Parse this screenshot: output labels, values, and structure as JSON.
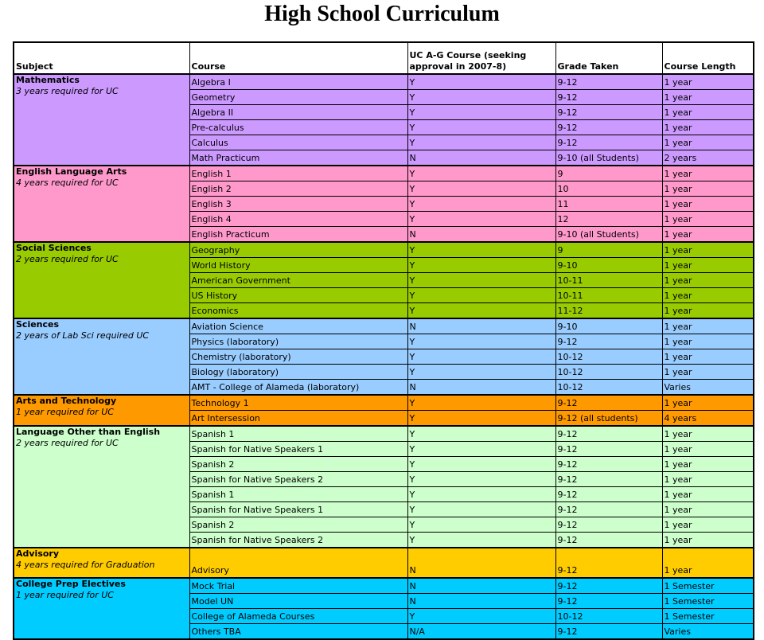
{
  "title": "High School Curriculum",
  "table": {
    "headers": [
      "Subject",
      "Course",
      "UC A-G Course (seeking approval in 2007-8)",
      "Grade Taken",
      "Course Length"
    ],
    "sections": [
      {
        "subject": "Mathematics",
        "note": "3 years required for UC",
        "color": "#CC99FF",
        "courses": [
          {
            "course": "Algebra I",
            "uc_ag": "Y",
            "grade": "9-12",
            "length": "1 year"
          },
          {
            "course": "Geometry",
            "uc_ag": "Y",
            "grade": "9-12",
            "length": "1 year"
          },
          {
            "course": "Algebra II",
            "uc_ag": "Y",
            "grade": "9-12",
            "length": "1 year"
          },
          {
            "course": "Pre-calculus",
            "uc_ag": "Y",
            "grade": "9-12",
            "length": "1 year"
          },
          {
            "course": "Calculus",
            "uc_ag": "Y",
            "grade": "9-12",
            "length": "1 year"
          },
          {
            "course": "Math Practicum",
            "uc_ag": "N",
            "grade": "9-10 (all Students)",
            "length": "2 years"
          }
        ]
      },
      {
        "subject": "English Language Arts",
        "note": "4 years required for UC",
        "color": "#FF99CC",
        "courses": [
          {
            "course": "English 1",
            "uc_ag": "Y",
            "grade": "9",
            "length": "1 year"
          },
          {
            "course": "English 2",
            "uc_ag": "Y",
            "grade": "10",
            "length": "1 year"
          },
          {
            "course": "English 3",
            "uc_ag": "Y",
            "grade": "11",
            "length": "1 year"
          },
          {
            "course": "English 4",
            "uc_ag": "Y",
            "grade": "12",
            "length": "1 year"
          },
          {
            "course": "English Practicum",
            "uc_ag": "N",
            "grade": "9-10 (all Students)",
            "length": "1 year"
          }
        ]
      },
      {
        "subject": "Social Sciences",
        "note": "2 years required for UC",
        "color": "#99CC00",
        "courses": [
          {
            "course": "Geography",
            "uc_ag": "Y",
            "grade": "9",
            "length": "1 year"
          },
          {
            "course": "World History",
            "uc_ag": "Y",
            "grade": "9-10",
            "length": "1 year"
          },
          {
            "course": "American Government",
            "uc_ag": "Y",
            "grade": "10-11",
            "length": "1 year"
          },
          {
            "course": "US History",
            "uc_ag": "Y",
            "grade": "10-11",
            "length": "1 year"
          },
          {
            "course": "Economics",
            "uc_ag": "Y",
            "grade": "11-12",
            "length": "1 year"
          }
        ]
      },
      {
        "subject": "Sciences",
        "note": "2 years of Lab Sci required UC",
        "color": "#99CCFF",
        "courses": [
          {
            "course": "Aviation Science",
            "uc_ag": "N",
            "grade": "9-10",
            "length": "1 year"
          },
          {
            "course": "Physics (laboratory)",
            "uc_ag": "Y",
            "grade": "9-12",
            "length": "1 year"
          },
          {
            "course": "Chemistry (laboratory)",
            "uc_ag": "Y",
            "grade": "10-12",
            "length": "1 year"
          },
          {
            "course": "Biology (laboratory)",
            "uc_ag": "Y",
            "grade": "10-12",
            "length": "1 year"
          },
          {
            "course": "AMT - College of Alameda (laboratory)",
            "uc_ag": "N",
            "grade": "10-12",
            "length": "Varies"
          }
        ]
      },
      {
        "subject": "Arts and Technology",
        "note": "1 year required for UC",
        "color": "#FF9900",
        "courses": [
          {
            "course": "Technology 1",
            "uc_ag": "Y",
            "grade": "9-12",
            "length": "1 year"
          },
          {
            "course": "Art Intersession",
            "uc_ag": "Y",
            "grade": "9-12 (all students)",
            "length": "4 years"
          }
        ]
      },
      {
        "subject": "Language Other than English",
        "note": "2 years required for UC",
        "color": "#CCFFCC",
        "courses": [
          {
            "course": "Spanish 1",
            "uc_ag": "Y",
            "grade": "9-12",
            "length": "1 year"
          },
          {
            "course": "Spanish for Native Speakers 1",
            "uc_ag": "Y",
            "grade": "9-12",
            "length": "1 year"
          },
          {
            "course": "Spanish 2",
            "uc_ag": "Y",
            "grade": "9-12",
            "length": "1 year"
          },
          {
            "course": "Spanish for Native Speakers 2",
            "uc_ag": "Y",
            "grade": "9-12",
            "length": "1 year"
          },
          {
            "course": "Spanish 1",
            "uc_ag": "Y",
            "grade": "9-12",
            "length": "1 year"
          },
          {
            "course": "Spanish for Native Speakers 1",
            "uc_ag": "Y",
            "grade": "9-12",
            "length": "1 year"
          },
          {
            "course": "Spanish 2",
            "uc_ag": "Y",
            "grade": "9-12",
            "length": "1 year"
          },
          {
            "course": "Spanish for Native Speakers 2",
            "uc_ag": "Y",
            "grade": "9-12",
            "length": "1 year"
          }
        ]
      },
      {
        "subject": "Advisory",
        "note": "4 years required for Graduation",
        "color": "#FFCC00",
        "tall": true,
        "courses": [
          {
            "course": "Advisory",
            "uc_ag": "N",
            "grade": "9-12",
            "length": "1 year"
          }
        ]
      },
      {
        "subject": "College Prep Electives",
        "note": "1 year required for UC",
        "color": "#00CCFF",
        "courses": [
          {
            "course": "Mock Trial",
            "uc_ag": "N",
            "grade": "9-12",
            "length": "1 Semester"
          },
          {
            "course": "Model UN",
            "uc_ag": "N",
            "grade": "9-12",
            "length": "1 Semester"
          },
          {
            "course": "College of Alameda Courses",
            "uc_ag": "Y",
            "grade": "10-12",
            "length": "1 Semester"
          },
          {
            "course": "Others TBA",
            "uc_ag": "N/A",
            "grade": "9-12",
            "length": "Varies"
          }
        ]
      }
    ]
  }
}
